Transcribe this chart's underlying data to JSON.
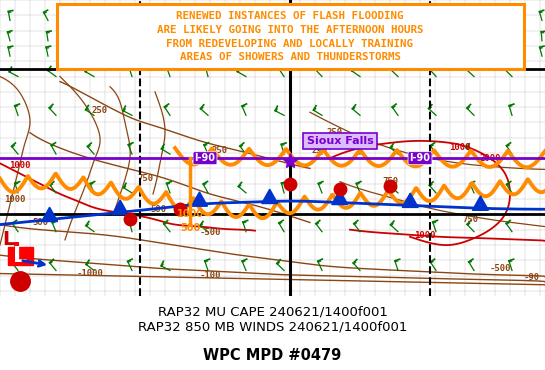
{
  "figure_width": 5.45,
  "figure_height": 3.7,
  "dpi": 100,
  "map_bg": "#e8e8e0",
  "title_lines": [
    "RENEWED INSTANCES OF FLASH FLOODING",
    "ARE LIKELY GOING INTO THE AFTERNOON HOURS",
    "FROM REDEVELOPING AND LOCALLY TRAINING",
    "AREAS OF SHOWERS AND THUNDERSTORMS"
  ],
  "caption_lines": [
    "RAP32 MU CAPE 240621/1400f001",
    "RAP32 850 MB WINDS 240621/1400f001"
  ],
  "caption_bold": "WPC MPD #0479",
  "orange": "#ff8c00",
  "green": "#007700",
  "brown": "#8B4513",
  "red": "#cc0000",
  "blue": "#0033cc",
  "purple": "#7700cc",
  "black": "#000000",
  "title_fs": 7.8,
  "caption_fs": 9.5,
  "caption_bold_fs": 10.5
}
